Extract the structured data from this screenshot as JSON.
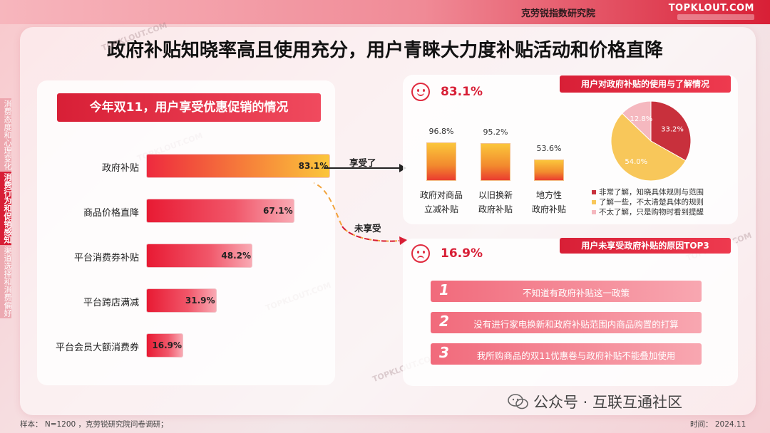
{
  "header": {
    "org_name": "克劳锐指数研究院",
    "logo_text": "TOPKLOUT.COM"
  },
  "title": "政府补贴知晓率高且使用充分，用户青睐大力度补贴活动和价格直降",
  "sidenav": [
    {
      "label": "消费态度和心理变化",
      "active": false
    },
    {
      "label": "消费行为和促销感知",
      "active": true
    },
    {
      "label": "渠道选择和消费偏好",
      "active": false
    }
  ],
  "left_chart": {
    "title": "今年双11，用户享受优惠促销的情况",
    "arrow_yes": "享受了",
    "arrow_no": "未享受"
  },
  "top_right": {
    "percent": "83.1%",
    "tag": "用户对政府补贴的使用与了解情况",
    "bars": [
      {
        "value_label": "96.8%",
        "cat_line1": "政府对商品",
        "cat_line2": "立减补贴"
      },
      {
        "value_label": "95.2%",
        "cat_line1": "以旧换新",
        "cat_line2": "政府补贴"
      },
      {
        "value_label": "53.6%",
        "cat_line1": "地方性",
        "cat_line2": "政府补贴"
      }
    ],
    "pie_labels": [
      "33.2%",
      "54.0%",
      "12.8%"
    ],
    "legend": [
      {
        "label": "非常了解，知晓具体规则与范围",
        "color": "#c8303c"
      },
      {
        "label": "了解一些，不太清楚具体的规则",
        "color": "#f8c75a"
      },
      {
        "label": "不太了解，只是购物时看到提醒",
        "color": "#f5b8bf"
      }
    ]
  },
  "bottom_right": {
    "percent": "16.9%",
    "tag": "用户未享受政府补贴的原因TOP3",
    "reasons": [
      {
        "num": "1",
        "text": "不知道有政府补贴这一政策"
      },
      {
        "num": "2",
        "text": "没有进行家电换新和政府补贴范围内商品购置的打算"
      },
      {
        "num": "3",
        "text": "我所购商品的双11优惠卷与政府补贴不能叠加使用"
      }
    ]
  },
  "footer": {
    "sample": "样本： N=1200 ，克劳锐研究院问卷调研；",
    "time": "时间： 2024.11",
    "wechat": "公众号 · 互联互通社区"
  },
  "colors": {
    "accent": "#d81f36",
    "bar_start": "#e81a33",
    "bar_end": "#f9aab4"
  },
  "chart_data": [
    {
      "type": "bar",
      "title": "今年双11，用户享受优惠促销的情况",
      "orientation": "horizontal",
      "categories": [
        "政府补贴",
        "商品价格直降",
        "平台消费券补贴",
        "平台跨店满减",
        "平台会员大额消费券"
      ],
      "values": [
        83.1,
        67.1,
        48.2,
        31.9,
        16.9
      ],
      "value_labels": [
        "83.1%",
        "67.1%",
        "48.2%",
        "31.9%",
        "16.9%"
      ],
      "unit": "%",
      "xlim": [
        0,
        100
      ]
    },
    {
      "type": "bar",
      "title": "用户对政府补贴的使用与了解情况",
      "categories": [
        "政府对商品立减补贴",
        "以旧换新政府补贴",
        "地方性政府补贴"
      ],
      "values": [
        96.8,
        95.2,
        53.6
      ],
      "unit": "%",
      "ylim": [
        0,
        100
      ]
    },
    {
      "type": "pie",
      "categories": [
        "非常了解，知晓具体规则与范围",
        "了解一些，不太清楚具体的规则",
        "不太了解，只是购物时看到提醒"
      ],
      "values": [
        33.2,
        54.0,
        12.8
      ],
      "unit": "%"
    }
  ]
}
